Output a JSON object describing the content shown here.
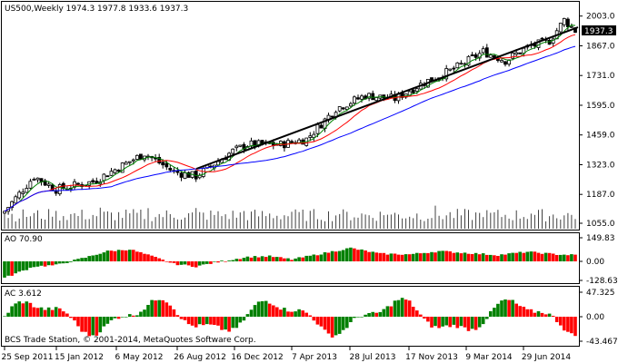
{
  "main": {
    "symbol_line": "US500,Weekly  1974.3 1977.8 1933.6 1937.3",
    "last_price": "1937.3",
    "price_ticks": [
      "2003.0",
      "1867.0",
      "1731.0",
      "1595.0",
      "1459.0",
      "1323.0",
      "1187.0",
      "1055.0"
    ],
    "ylim": [
      1030,
      2060
    ]
  },
  "ao": {
    "label": "AO 70.90",
    "ticks": [
      "149.83",
      "0.00",
      "-128.63"
    ]
  },
  "ac": {
    "label": "AC 3.612",
    "ticks": [
      "47.325",
      "0.00",
      "-43.467"
    ]
  },
  "x_labels": [
    "25 Sep 2011",
    "15 Jan 2012",
    "6 May 2012",
    "26 Aug 2012",
    "16 Dec 2012",
    "7 Apr 2013",
    "28 Jul 2013",
    "17 Nov 2013",
    "9 Mar 2014",
    "29 Jun 2014"
  ],
  "copyright": "BCS Trade Station, © 2001-2014, MetaQuotes Software Corp.",
  "colors": {
    "bull": "#008000",
    "bear": "#ff0000",
    "ma_fast": "#008000",
    "ma_mid": "#ff0000",
    "ma_slow": "#0000ff",
    "trend": "#000000",
    "volume": "#404040",
    "last_tag_bg": "#000000",
    "last_tag_fg": "#ffffff"
  }
}
